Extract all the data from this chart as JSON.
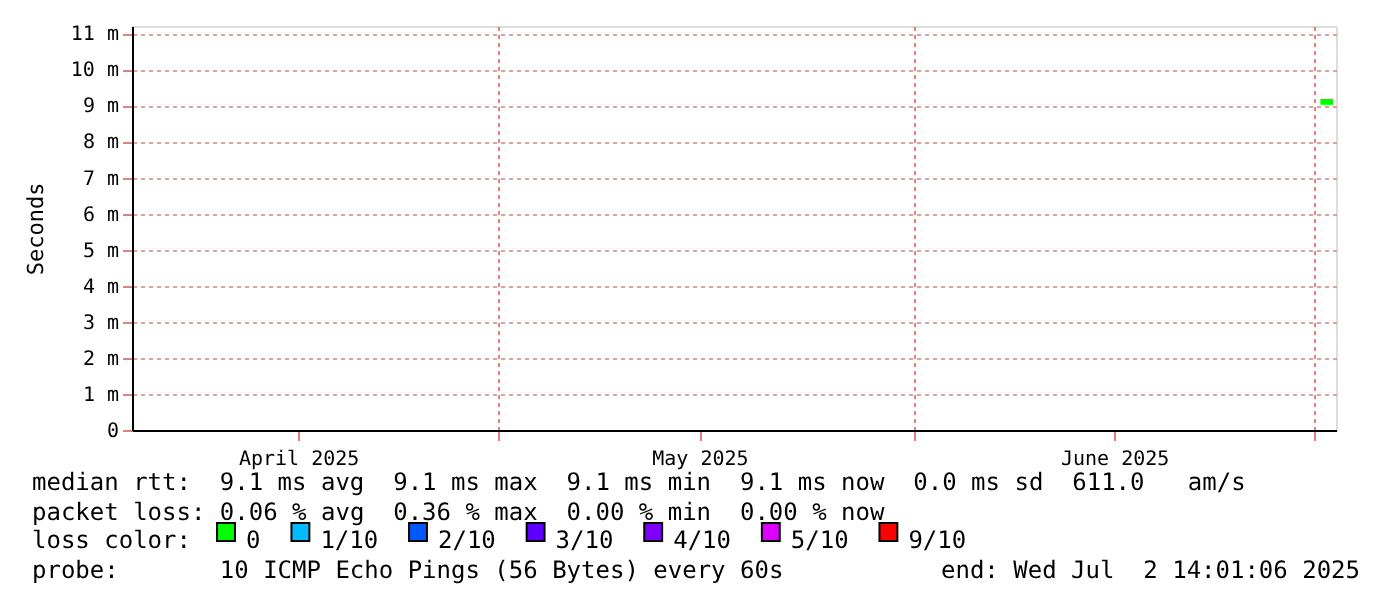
{
  "chart_data": {
    "type": "line",
    "ylabel": "Seconds",
    "x": [
      "2025-07-01T10:00",
      "2025-07-02T09:00"
    ],
    "xlim": [
      "2025-04-03T14:00",
      "2025-07-02T14:00"
    ],
    "xticks": [
      {
        "value": "2025-04-16",
        "label": "April 2025"
      },
      {
        "value": "2025-05-01",
        "label": null
      },
      {
        "value": "2025-05-16",
        "label": "May 2025"
      },
      {
        "value": "2025-06-01",
        "label": null
      },
      {
        "value": "2025-06-16",
        "label": "June 2025"
      },
      {
        "value": "2025-07-01",
        "label": null
      }
    ],
    "ylim": [
      0,
      11.2
    ],
    "yticks": [
      0,
      {
        "value": 1,
        "label": "1 m"
      },
      {
        "value": 2,
        "label": "2 m"
      },
      {
        "value": 3,
        "label": "3 m"
      },
      {
        "value": 4,
        "label": "4 m"
      },
      {
        "value": 5,
        "label": "5 m"
      },
      {
        "value": 6,
        "label": "6 m"
      },
      {
        "value": 7,
        "label": "7 m"
      },
      {
        "value": 8,
        "label": "8 m"
      },
      {
        "value": 9,
        "label": "9 m"
      },
      {
        "value": 10,
        "label": "10 m"
      },
      {
        "value": 11,
        "label": "11 m"
      }
    ],
    "legend_title": "loss color:",
    "series": [
      {
        "name": "0",
        "color": "#00ff00",
        "values": [
          9.1,
          9.1
        ]
      },
      {
        "name": "1/10",
        "color": "#00bbff",
        "values": [
          null,
          null
        ]
      },
      {
        "name": "2/10",
        "color": "#0059ff",
        "values": [
          null,
          null
        ]
      },
      {
        "name": "3/10",
        "color": "#5e00ff",
        "values": [
          null,
          null
        ]
      },
      {
        "name": "4/10",
        "color": "#7e00ff",
        "values": [
          null,
          null
        ]
      },
      {
        "name": "5/10",
        "color": "#dd00ff",
        "values": [
          null,
          null
        ]
      },
      {
        "name": "9/10",
        "color": "#ff0000",
        "values": [
          null,
          null
        ]
      }
    ],
    "annotations": [
      "median rtt:  9.1 ms avg  9.1 ms max  9.1 ms min  9.1 ms now  0.0 ms sd  611.0   am/s",
      "packet loss: 0.06 % avg  0.36 % max  0.00 % min  0.00 % now",
      "probe:       10 ICMP Echo Pings (56 Bytes) every 60s",
      "end: Wed Jul  2 14:01:06 2025"
    ],
    "grid": true,
    "legend": "bottom",
    "line_style": "solid",
    "marker": "none"
  }
}
